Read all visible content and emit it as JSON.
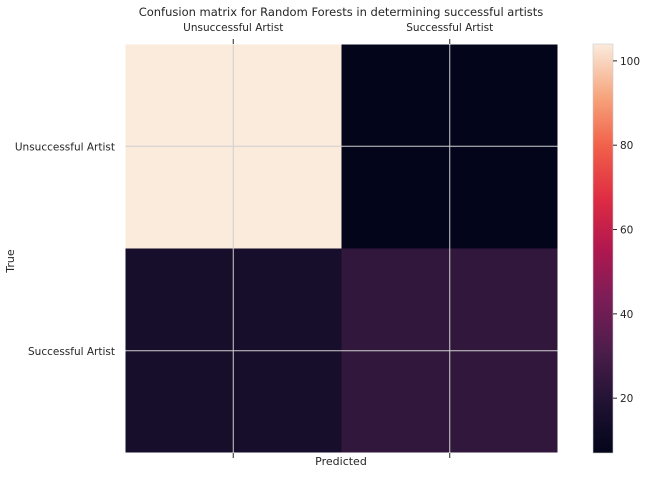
{
  "chart_data": {
    "type": "heatmap",
    "title": "Confusion matrix for Random Forests in determining successful artists",
    "xlabel": "Predicted",
    "ylabel": "True",
    "x_categories": [
      "Unsuccessful Artist",
      "Successful Artist"
    ],
    "y_categories": [
      "Unsuccessful Artist",
      "Successful Artist"
    ],
    "values": [
      [
        104,
        7
      ],
      [
        15,
        24
      ]
    ],
    "colormap": "rocket",
    "colorbar": {
      "min": 7,
      "max": 104,
      "ticks": [
        20,
        40,
        60,
        80,
        100
      ]
    },
    "grid": true,
    "x_tick_position": "top"
  }
}
